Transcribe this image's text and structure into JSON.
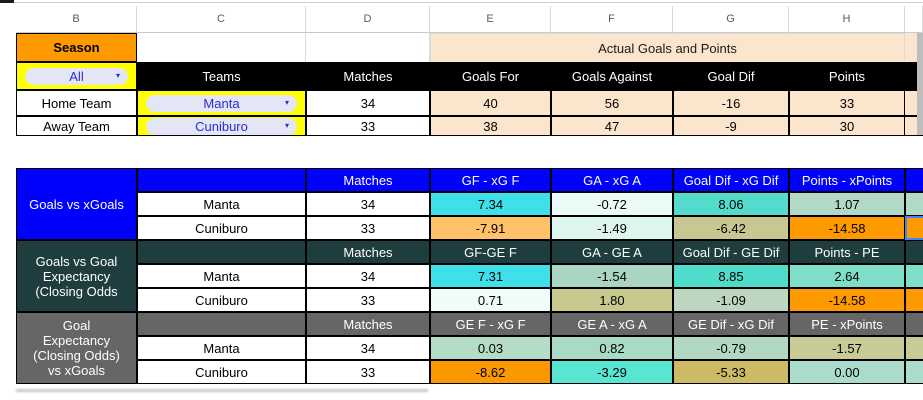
{
  "icons": {
    "dropdown": "▾"
  },
  "colors": {
    "orange": "#FF9900",
    "cream": "#FCE5CD",
    "yellow": "#FFFF00",
    "chip_pill": "#E4E6F5",
    "chip_text": "#2A2BD4",
    "section_blue": "#0000FE",
    "section_teal": "#1F3C3E",
    "section_gray": "#666666",
    "selection_blue": "#4285F4"
  },
  "grid": {
    "rows": [
      {
        "name": "column-headers",
        "cells": [
          {
            "c": 1,
            "t": "B",
            "k": "colhead",
            "n": "col-letter-b"
          },
          {
            "c": 2,
            "t": "C",
            "k": "colhead",
            "n": "col-letter-c"
          },
          {
            "c": 3,
            "t": "D",
            "k": "colhead",
            "n": "col-letter-d"
          },
          {
            "c": 4,
            "t": "E",
            "k": "colhead",
            "n": "col-letter-e"
          },
          {
            "c": 5,
            "t": "F",
            "k": "colhead",
            "n": "col-letter-f"
          },
          {
            "c": 6,
            "t": "G",
            "k": "colhead",
            "n": "col-letter-g"
          },
          {
            "c": 7,
            "t": "H",
            "k": "colhead",
            "n": "col-letter-h"
          },
          {
            "c": 8,
            "t": "",
            "k": "colhead",
            "n": "col-letter-sliver"
          }
        ]
      },
      {
        "name": "season-row",
        "cells": [
          {
            "c": 1,
            "t": "Season",
            "k": "season",
            "bg": "#FF9900",
            "n": "season-header"
          },
          {
            "c": 2,
            "t": "",
            "k": "plain",
            "n": "cell-c2-blank"
          },
          {
            "c": 3,
            "t": "",
            "k": "plain",
            "n": "cell-d2-blank"
          },
          {
            "c": 4,
            "s": 4,
            "t": "Actual Goals and Points",
            "k": "merged",
            "bg": "#FCE5CD",
            "n": "actual-goals-points-header"
          },
          {
            "c": 8,
            "t": "",
            "k": "plainsliver",
            "bg": "#FCE5CD",
            "n": "sliver-actual"
          }
        ]
      },
      {
        "name": "filter-header-row",
        "cells": [
          {
            "c": 1,
            "t": "All",
            "k": "chip",
            "bg": "#FFFF00",
            "n": "season-filter-chip"
          },
          {
            "c": 2,
            "t": "Teams",
            "k": "dark",
            "bg": "#000000",
            "n": "teams-header"
          },
          {
            "c": 3,
            "t": "Matches",
            "k": "dark",
            "bg": "#000000",
            "n": "matches-header"
          },
          {
            "c": 4,
            "t": "Goals For",
            "k": "dark",
            "bg": "#000000",
            "n": "goals-for-header"
          },
          {
            "c": 5,
            "t": "Goals Against",
            "k": "dark",
            "bg": "#000000",
            "n": "goals-against-header"
          },
          {
            "c": 6,
            "t": "Goal Dif",
            "k": "dark",
            "bg": "#000000",
            "n": "goal-dif-header"
          },
          {
            "c": 7,
            "t": "Points",
            "k": "dark",
            "bg": "#000000",
            "n": "points-header"
          },
          {
            "c": 8,
            "t": "",
            "k": "dark",
            "bg": "#000000",
            "n": "sliver-header"
          }
        ]
      },
      {
        "name": "home-team-row",
        "cells": [
          {
            "c": 1,
            "t": "Home Team",
            "k": "team",
            "n": "home-team-label"
          },
          {
            "c": 2,
            "t": "Manta",
            "k": "chip",
            "bg": "#FFFF00",
            "n": "home-team-chip"
          },
          {
            "c": 3,
            "t": "34",
            "k": "team",
            "n": "home-matches"
          },
          {
            "c": 4,
            "t": "40",
            "k": "val",
            "bg": "#FCE5CD",
            "n": "home-goals-for"
          },
          {
            "c": 5,
            "t": "56",
            "k": "val",
            "bg": "#FCE5CD",
            "n": "home-goals-against"
          },
          {
            "c": 6,
            "t": "-16",
            "k": "val",
            "bg": "#FCE5CD",
            "n": "home-goal-dif"
          },
          {
            "c": 7,
            "t": "33",
            "k": "val",
            "bg": "#FCE5CD",
            "n": "home-points"
          },
          {
            "c": 8,
            "t": "",
            "k": "creamsliver",
            "bg": "#FCE5CD",
            "n": "sliver-home"
          }
        ]
      },
      {
        "name": "away-team-row",
        "cells": [
          {
            "c": 1,
            "t": "Away Team",
            "k": "team",
            "n": "away-team-label"
          },
          {
            "c": 2,
            "t": "Cuniburo",
            "k": "chip",
            "bg": "#FFFF00",
            "n": "away-team-chip"
          },
          {
            "c": 3,
            "t": "33",
            "k": "team",
            "n": "away-matches"
          },
          {
            "c": 4,
            "t": "38",
            "k": "val",
            "bg": "#FCE5CD",
            "n": "away-goals-for"
          },
          {
            "c": 5,
            "t": "47",
            "k": "val",
            "bg": "#FCE5CD",
            "n": "away-goals-against"
          },
          {
            "c": 6,
            "t": "-9",
            "k": "val",
            "bg": "#FCE5CD",
            "n": "away-goal-dif"
          },
          {
            "c": 7,
            "t": "30",
            "k": "val",
            "bg": "#FCE5CD",
            "n": "away-points"
          },
          {
            "c": 8,
            "t": "",
            "k": "creamsliver",
            "bg": "#FCE5CD",
            "n": "sliver-away"
          }
        ]
      },
      {
        "name": "gap-row",
        "cells": [
          {
            "c": 1,
            "s": 8,
            "t": "",
            "k": "gap",
            "n": "gap-row",
            "i": false
          }
        ]
      },
      {
        "name": "goals-vs-xgoals-header",
        "cells": [
          {
            "c": 1,
            "rs": 3,
            "lines": [
              "Goals vs xGoals"
            ],
            "k": "title",
            "bg": "#0000FE",
            "n": "goals-vs-xgoals-title"
          },
          {
            "c": 2,
            "t": "",
            "k": "dhead",
            "bg": "#0000FE",
            "n": "s1-blank-header"
          },
          {
            "c": 3,
            "t": "Matches",
            "k": "dhead",
            "bg": "#0000FE",
            "n": "s1-matches-header"
          },
          {
            "c": 4,
            "t": "GF - xG F",
            "k": "dhead",
            "bg": "#0000FE",
            "n": "s1-gf-xgf-header"
          },
          {
            "c": 5,
            "t": "GA - xG A",
            "k": "dhead",
            "bg": "#0000FE",
            "n": "s1-ga-xga-header"
          },
          {
            "c": 6,
            "t": "Goal Dif - xG Dif",
            "k": "dhead",
            "bg": "#0000FE",
            "n": "s1-goaldif-xgdif-header"
          },
          {
            "c": 7,
            "t": "Points - xPoints",
            "k": "dhead",
            "bg": "#0000FE",
            "n": "s1-points-xpoints-header"
          },
          {
            "c": 8,
            "t": "",
            "k": "sliver",
            "bg": "#0000FE",
            "n": "s1-sliver-header"
          }
        ]
      },
      {
        "name": "s1-manta-row",
        "cells": [
          {
            "c": 2,
            "t": "Manta",
            "k": "team",
            "n": "s1-manta-label"
          },
          {
            "c": 3,
            "t": "34",
            "k": "team",
            "n": "s1-manta-matches"
          },
          {
            "c": 4,
            "t": "7.34",
            "k": "val",
            "bg": "#3FE0EA",
            "n": "s1-manta-gf-xgf"
          },
          {
            "c": 5,
            "t": "-0.72",
            "k": "val",
            "bg": "#EAFAF7",
            "n": "s1-manta-ga-xga"
          },
          {
            "c": 6,
            "t": "8.06",
            "k": "val",
            "bg": "#55DBCB",
            "n": "s1-manta-goaldif-xgdif"
          },
          {
            "c": 7,
            "t": "1.07",
            "k": "val",
            "bg": "#B2D9C6",
            "n": "s1-manta-points-xpoints"
          },
          {
            "c": 8,
            "t": "",
            "k": "sliver",
            "bg": "#B2D9C6",
            "n": "s1-manta-sliver"
          }
        ]
      },
      {
        "name": "s1-cuniburo-row",
        "cells": [
          {
            "c": 2,
            "t": "Cuniburo",
            "k": "team",
            "n": "s1-cuniburo-label"
          },
          {
            "c": 3,
            "t": "33",
            "k": "team",
            "n": "s1-cuniburo-matches"
          },
          {
            "c": 4,
            "t": "-7.91",
            "k": "val",
            "bg": "#FFC26B",
            "n": "s1-cuniburo-gf-xgf"
          },
          {
            "c": 5,
            "t": "-1.49",
            "k": "val",
            "bg": "#DDF4EF",
            "n": "s1-cuniburo-ga-xga"
          },
          {
            "c": 6,
            "t": "-6.42",
            "k": "val",
            "bg": "#C8C791",
            "n": "s1-cuniburo-goaldif-xgdif"
          },
          {
            "c": 7,
            "t": "-14.58",
            "k": "val",
            "bg": "#FF9900",
            "n": "s1-cuniburo-points-xpoints"
          },
          {
            "c": 8,
            "t": "",
            "k": "sliver",
            "bg": "#FF9900",
            "sel": true,
            "n": "selected-cell"
          }
        ]
      },
      {
        "name": "goals-vs-ge-header",
        "cells": [
          {
            "c": 1,
            "rs": 3,
            "lines": [
              "Goals vs Goal",
              "Expectancy",
              "(Closing Odds"
            ],
            "k": "title",
            "bg": "#1F3C3E",
            "n": "goals-vs-goal-expectancy-title"
          },
          {
            "c": 2,
            "t": "",
            "k": "dhead",
            "bg": "#1F3C3E",
            "n": "s2-blank-header"
          },
          {
            "c": 3,
            "t": "Matches",
            "k": "dhead",
            "bg": "#1F3C3E",
            "n": "s2-matches-header"
          },
          {
            "c": 4,
            "t": "GF-GE F",
            "k": "dhead",
            "bg": "#1F3C3E",
            "n": "s2-gf-gef-header"
          },
          {
            "c": 5,
            "t": "GA - GE A",
            "k": "dhead",
            "bg": "#1F3C3E",
            "n": "s2-ga-gea-header"
          },
          {
            "c": 6,
            "t": "Goal Dif - GE Dif",
            "k": "dhead",
            "bg": "#1F3C3E",
            "n": "s2-goaldif-gedif-header"
          },
          {
            "c": 7,
            "t": "Points - PE",
            "k": "dhead",
            "bg": "#1F3C3E",
            "n": "s2-points-pe-header"
          },
          {
            "c": 8,
            "t": "",
            "k": "sliver",
            "bg": "#1F3C3E",
            "n": "s2-sliver-header"
          }
        ]
      },
      {
        "name": "s2-manta-row",
        "cells": [
          {
            "c": 2,
            "t": "Manta",
            "k": "team",
            "n": "s2-manta-label"
          },
          {
            "c": 3,
            "t": "34",
            "k": "team",
            "n": "s2-manta-matches"
          },
          {
            "c": 4,
            "t": "7.31",
            "k": "val",
            "bg": "#3FE0EA",
            "n": "s2-manta-gf-gef"
          },
          {
            "c": 5,
            "t": "-1.54",
            "k": "val",
            "bg": "#AAD5C2",
            "n": "s2-manta-ga-gea"
          },
          {
            "c": 6,
            "t": "8.85",
            "k": "val",
            "bg": "#50DCCB",
            "n": "s2-manta-goaldif-gedif"
          },
          {
            "c": 7,
            "t": "2.64",
            "k": "val",
            "bg": "#7EDEC9",
            "n": "s2-manta-points-pe"
          },
          {
            "c": 8,
            "t": "",
            "k": "sliver",
            "bg": "#7EDEC9",
            "n": "s2-manta-sliver"
          }
        ]
      },
      {
        "name": "s2-cuniburo-row",
        "cells": [
          {
            "c": 2,
            "t": "Cuniburo",
            "k": "team",
            "n": "s2-cuniburo-label"
          },
          {
            "c": 3,
            "t": "33",
            "k": "team",
            "n": "s2-cuniburo-matches"
          },
          {
            "c": 4,
            "t": "0.71",
            "k": "val",
            "bg": "#EFFCFA",
            "n": "s2-cuniburo-gf-gef"
          },
          {
            "c": 5,
            "t": "1.80",
            "k": "val",
            "bg": "#C7C98E",
            "n": "s2-cuniburo-ga-gea"
          },
          {
            "c": 6,
            "t": "-1.09",
            "k": "val",
            "bg": "#BDD6BF",
            "n": "s2-cuniburo-goaldif-gedif"
          },
          {
            "c": 7,
            "t": "-14.58",
            "k": "val",
            "bg": "#FF9900",
            "n": "s2-cuniburo-points-pe"
          },
          {
            "c": 8,
            "t": "",
            "k": "sliver",
            "bg": "#FF9900",
            "n": "s2-cuniburo-sliver"
          }
        ]
      },
      {
        "name": "ge-vs-xgoals-header",
        "cells": [
          {
            "c": 1,
            "rs": 3,
            "lines": [
              "Goal",
              "Expectancy",
              "(Closing Odds)",
              "vs xGoals"
            ],
            "k": "title",
            "bg": "#666666",
            "n": "goal-expectancy-vs-xgoals-title"
          },
          {
            "c": 2,
            "t": "",
            "k": "dhead",
            "bg": "#666666",
            "n": "s3-blank-header"
          },
          {
            "c": 3,
            "t": "Matches",
            "k": "dhead",
            "bg": "#666666",
            "n": "s3-matches-header"
          },
          {
            "c": 4,
            "t": "GE F - xG F",
            "k": "dhead",
            "bg": "#666666",
            "n": "s3-gef-xgf-header"
          },
          {
            "c": 5,
            "t": "GE A - xG A",
            "k": "dhead",
            "bg": "#666666",
            "n": "s3-gea-xga-header"
          },
          {
            "c": 6,
            "t": "GE Dif - xG Dif",
            "k": "dhead",
            "bg": "#666666",
            "n": "s3-gedif-xgdif-header"
          },
          {
            "c": 7,
            "t": "PE - xPoints",
            "k": "dhead",
            "bg": "#666666",
            "n": "s3-pe-xpoints-header"
          },
          {
            "c": 8,
            "t": "",
            "k": "sliver",
            "bg": "#666666",
            "n": "s3-sliver-header"
          }
        ]
      },
      {
        "name": "s3-manta-row",
        "cells": [
          {
            "c": 2,
            "t": "Manta",
            "k": "team",
            "n": "s3-manta-label"
          },
          {
            "c": 3,
            "t": "34",
            "k": "team",
            "n": "s3-manta-matches"
          },
          {
            "c": 4,
            "t": "0.03",
            "k": "val",
            "bg": "#B5DCC7",
            "n": "s3-manta-gef-xgf"
          },
          {
            "c": 5,
            "t": "0.82",
            "k": "val",
            "bg": "#A9DAC5",
            "n": "s3-manta-gea-xga"
          },
          {
            "c": 6,
            "t": "-0.79",
            "k": "val",
            "bg": "#B3D8C2",
            "n": "s3-manta-gedif-xgdif"
          },
          {
            "c": 7,
            "t": "-1.57",
            "k": "val",
            "bg": "#C9CB97",
            "n": "s3-manta-pe-xpoints"
          },
          {
            "c": 8,
            "t": "",
            "k": "sliver",
            "bg": "#C9CB97",
            "n": "s3-manta-sliver"
          }
        ]
      },
      {
        "name": "s3-cuniburo-row",
        "cells": [
          {
            "c": 2,
            "t": "Cuniburo",
            "k": "team",
            "n": "s3-cuniburo-label"
          },
          {
            "c": 3,
            "t": "33",
            "k": "team",
            "n": "s3-cuniburo-matches"
          },
          {
            "c": 4,
            "t": "-8.62",
            "k": "val",
            "bg": "#FA9701",
            "n": "s3-cuniburo-gef-xgf"
          },
          {
            "c": 5,
            "t": "-3.29",
            "k": "val",
            "bg": "#58E5D2",
            "n": "s3-cuniburo-gea-xga"
          },
          {
            "c": 6,
            "t": "-5.33",
            "k": "val",
            "bg": "#CCBA65",
            "n": "s3-cuniburo-gedif-xgdif"
          },
          {
            "c": 7,
            "t": "0.00",
            "k": "val",
            "bg": "#ABDCCB",
            "n": "s3-cuniburo-pe-xpoints"
          },
          {
            "c": 8,
            "t": "",
            "k": "sliver",
            "bg": "#ABDCCB",
            "n": "s3-cuniburo-sliver"
          }
        ]
      }
    ]
  }
}
